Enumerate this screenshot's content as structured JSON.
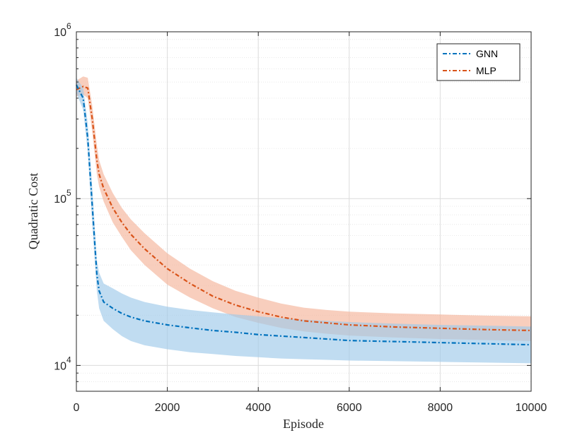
{
  "chart_data": {
    "type": "line",
    "title": "",
    "xlabel": "Episode",
    "ylabel": "Quadratic Cost",
    "xlim": [
      0,
      10000
    ],
    "ylim": [
      7000,
      1000000
    ],
    "yscale": "log",
    "grid": true,
    "legend_position": "top-right",
    "x_ticks": [
      "0",
      "2000",
      "4000",
      "6000",
      "8000",
      "10000"
    ],
    "y_ticks": [
      {
        "base": "10",
        "exp": "4",
        "value": 10000
      },
      {
        "base": "10",
        "exp": "5",
        "value": 100000
      },
      {
        "base": "10",
        "exp": "6",
        "value": 1000000
      }
    ],
    "x": [
      0,
      150,
      250,
      350,
      450,
      500,
      600,
      800,
      1000,
      1200,
      1500,
      2000,
      2500,
      3000,
      3500,
      4000,
      4500,
      5000,
      5500,
      6000,
      7000,
      8000,
      9000,
      10000
    ],
    "series": [
      {
        "name": "GNN",
        "color": "#0072BD",
        "band_color": "#9ECAE9",
        "style": "dash-dot",
        "values": [
          480000,
          400000,
          230000,
          90000,
          35000,
          28000,
          24000,
          22000,
          20500,
          19500,
          18500,
          17500,
          16800,
          16200,
          15800,
          15300,
          15000,
          14700,
          14400,
          14100,
          13900,
          13700,
          13500,
          13300
        ],
        "lower": [
          430000,
          340000,
          190000,
          70000,
          28000,
          22000,
          18500,
          16500,
          15000,
          14000,
          13200,
          12500,
          12000,
          11700,
          11400,
          11200,
          11000,
          10900,
          10800,
          10700,
          10600,
          10500,
          10400,
          10300
        ],
        "upper": [
          530000,
          460000,
          280000,
          115000,
          43000,
          36000,
          31000,
          29000,
          27000,
          25500,
          24000,
          22500,
          21500,
          20800,
          20200,
          19700,
          19200,
          18800,
          18500,
          18200,
          17800,
          17500,
          17300,
          17100
        ]
      },
      {
        "name": "MLP",
        "color": "#D95319",
        "band_color": "#F4B399",
        "style": "dash-dot",
        "values": [
          450000,
          470000,
          460000,
          300000,
          170000,
          140000,
          115000,
          88000,
          72000,
          61000,
          50000,
          38000,
          31000,
          26000,
          23000,
          21000,
          19500,
          18500,
          18000,
          17500,
          17000,
          16700,
          16400,
          16200
        ],
        "lower": [
          410000,
          420000,
          400000,
          250000,
          140000,
          118000,
          96000,
          72000,
          59000,
          49000,
          40000,
          30500,
          25500,
          22000,
          19500,
          18000,
          16800,
          16000,
          15500,
          15100,
          14700,
          14400,
          14200,
          14000
        ],
        "upper": [
          510000,
          540000,
          530000,
          360000,
          210000,
          170000,
          140000,
          108000,
          88000,
          75000,
          62000,
          47000,
          38000,
          32000,
          28000,
          25500,
          23500,
          22200,
          21500,
          21000,
          20500,
          20200,
          19900,
          19700
        ]
      }
    ]
  }
}
